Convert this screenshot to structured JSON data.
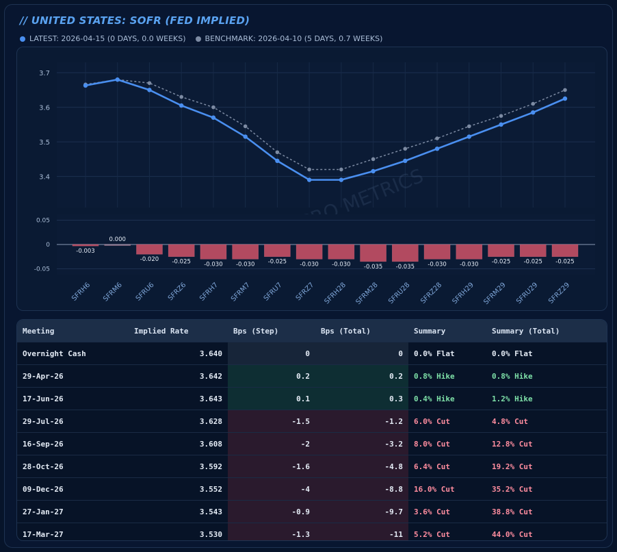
{
  "header": {
    "title": "// UNITED STATES: SOFR (FED IMPLIED)",
    "latest_label": "LATEST: 2026-04-15 (0 DAYS, 0.0 WEEKS)",
    "benchmark_label": "BENCHMARK: 2026-04-10 (5 DAYS, 0.7 WEEKS)",
    "latest_color": "#4a8ff0",
    "benchmark_color": "#7d8ba3"
  },
  "watermark": "GLOBAL MACRO METRICS",
  "chart_data": [
    {
      "type": "line",
      "categories": [
        "SFRH6",
        "SFRM6",
        "SFRU6",
        "SFRZ6",
        "SFRH7",
        "SFRM7",
        "SFRU7",
        "SFRZ7",
        "SFRH28",
        "SFRM28",
        "SFRU28",
        "SFRZ28",
        "SFRH29",
        "SFRM29",
        "SFRU29",
        "SFRZ29"
      ],
      "series": [
        {
          "name": "LATEST",
          "values": [
            3.663,
            3.68,
            3.65,
            3.605,
            3.57,
            3.515,
            3.445,
            3.39,
            3.39,
            3.415,
            3.445,
            3.48,
            3.515,
            3.55,
            3.585,
            3.625
          ]
        },
        {
          "name": "BENCHMARK",
          "values": [
            3.666,
            3.68,
            3.67,
            3.63,
            3.6,
            3.545,
            3.47,
            3.42,
            3.42,
            3.45,
            3.48,
            3.51,
            3.545,
            3.575,
            3.61,
            3.65
          ]
        }
      ],
      "yticks": [
        "3.4",
        "3.5",
        "3.6",
        "3.7"
      ],
      "ylim": [
        3.31,
        3.73
      ],
      "grid": true
    },
    {
      "type": "bar",
      "categories": [
        "SFRH6",
        "SFRM6",
        "SFRU6",
        "SFRZ6",
        "SFRH7",
        "SFRM7",
        "SFRU7",
        "SFRZ7",
        "SFRH28",
        "SFRM28",
        "SFRU28",
        "SFRZ28",
        "SFRH29",
        "SFRM29",
        "SFRU29",
        "SFRZ29"
      ],
      "values": [
        -0.003,
        0.0,
        -0.02,
        -0.025,
        -0.03,
        -0.03,
        -0.025,
        -0.03,
        -0.03,
        -0.035,
        -0.035,
        -0.03,
        -0.03,
        -0.025,
        -0.025,
        -0.025
      ],
      "labels": [
        "-0.003",
        "0.000",
        "-0.020",
        "-0.025",
        "-0.030",
        "-0.030",
        "-0.025",
        "-0.030",
        "-0.030",
        "-0.035",
        "-0.035",
        "-0.030",
        "-0.030",
        "-0.025",
        "-0.025",
        "-0.025"
      ],
      "yticks": [
        "0.05",
        "0",
        "-0.05"
      ],
      "ylim": [
        -0.062,
        0.062
      ],
      "bar_color": "#b24a60"
    }
  ],
  "table": {
    "columns": [
      "Meeting",
      "Implied Rate",
      "Bps (Step)",
      "Bps (Total)",
      "Summary",
      "Summary (Total)"
    ],
    "rows": [
      {
        "meeting": "Overnight Cash",
        "rate": "3.640",
        "step": "0",
        "total": "0",
        "summary": "0.0% Flat",
        "summary_total": "0.0% Flat",
        "dir": "zero"
      },
      {
        "meeting": "29-Apr-26",
        "rate": "3.642",
        "step": "0.2",
        "total": "0.2",
        "summary": "0.8% Hike",
        "summary_total": "0.8% Hike",
        "dir": "pos"
      },
      {
        "meeting": "17-Jun-26",
        "rate": "3.643",
        "step": "0.1",
        "total": "0.3",
        "summary": "0.4% Hike",
        "summary_total": "1.2% Hike",
        "dir": "pos"
      },
      {
        "meeting": "29-Jul-26",
        "rate": "3.628",
        "step": "-1.5",
        "total": "-1.2",
        "summary": "6.0% Cut",
        "summary_total": "4.8% Cut",
        "dir": "neg"
      },
      {
        "meeting": "16-Sep-26",
        "rate": "3.608",
        "step": "-2",
        "total": "-3.2",
        "summary": "8.0% Cut",
        "summary_total": "12.8% Cut",
        "dir": "neg"
      },
      {
        "meeting": "28-Oct-26",
        "rate": "3.592",
        "step": "-1.6",
        "total": "-4.8",
        "summary": "6.4% Cut",
        "summary_total": "19.2% Cut",
        "dir": "neg"
      },
      {
        "meeting": "09-Dec-26",
        "rate": "3.552",
        "step": "-4",
        "total": "-8.8",
        "summary": "16.0% Cut",
        "summary_total": "35.2% Cut",
        "dir": "neg"
      },
      {
        "meeting": "27-Jan-27",
        "rate": "3.543",
        "step": "-0.9",
        "total": "-9.7",
        "summary": "3.6% Cut",
        "summary_total": "38.8% Cut",
        "dir": "neg"
      },
      {
        "meeting": "17-Mar-27",
        "rate": "3.530",
        "step": "-1.3",
        "total": "-11",
        "summary": "5.2% Cut",
        "summary_total": "44.0% Cut",
        "dir": "neg"
      }
    ]
  }
}
